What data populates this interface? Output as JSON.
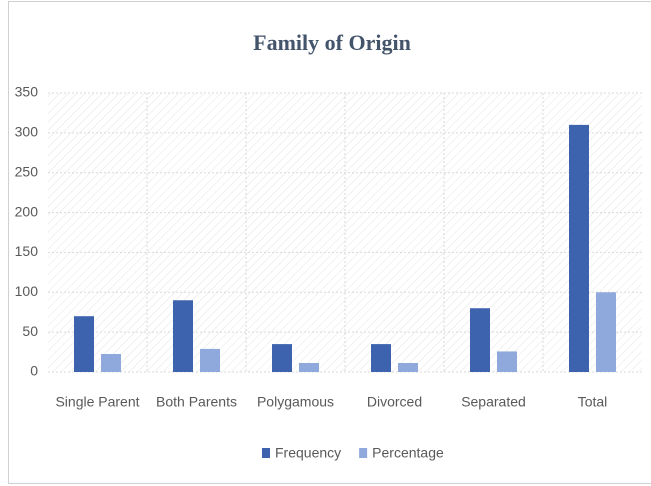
{
  "chart_data": {
    "type": "bar",
    "title": "Family of Origin",
    "categories": [
      "Single Parent",
      "Both Parents",
      "Polygamous",
      "Divorced",
      "Separated",
      "Total"
    ],
    "series": [
      {
        "name": "Frequency",
        "color": "#3d63ae",
        "values": [
          70,
          90,
          35,
          35,
          80,
          310
        ]
      },
      {
        "name": "Percentage",
        "color": "#8fa9dc",
        "values": [
          22.6,
          29,
          11.3,
          11.3,
          25.8,
          100
        ]
      }
    ],
    "ylim": [
      0,
      350
    ],
    "yticks": [
      0,
      50,
      100,
      150,
      200,
      250,
      300,
      350
    ],
    "grid": true,
    "legend": "bottom"
  }
}
